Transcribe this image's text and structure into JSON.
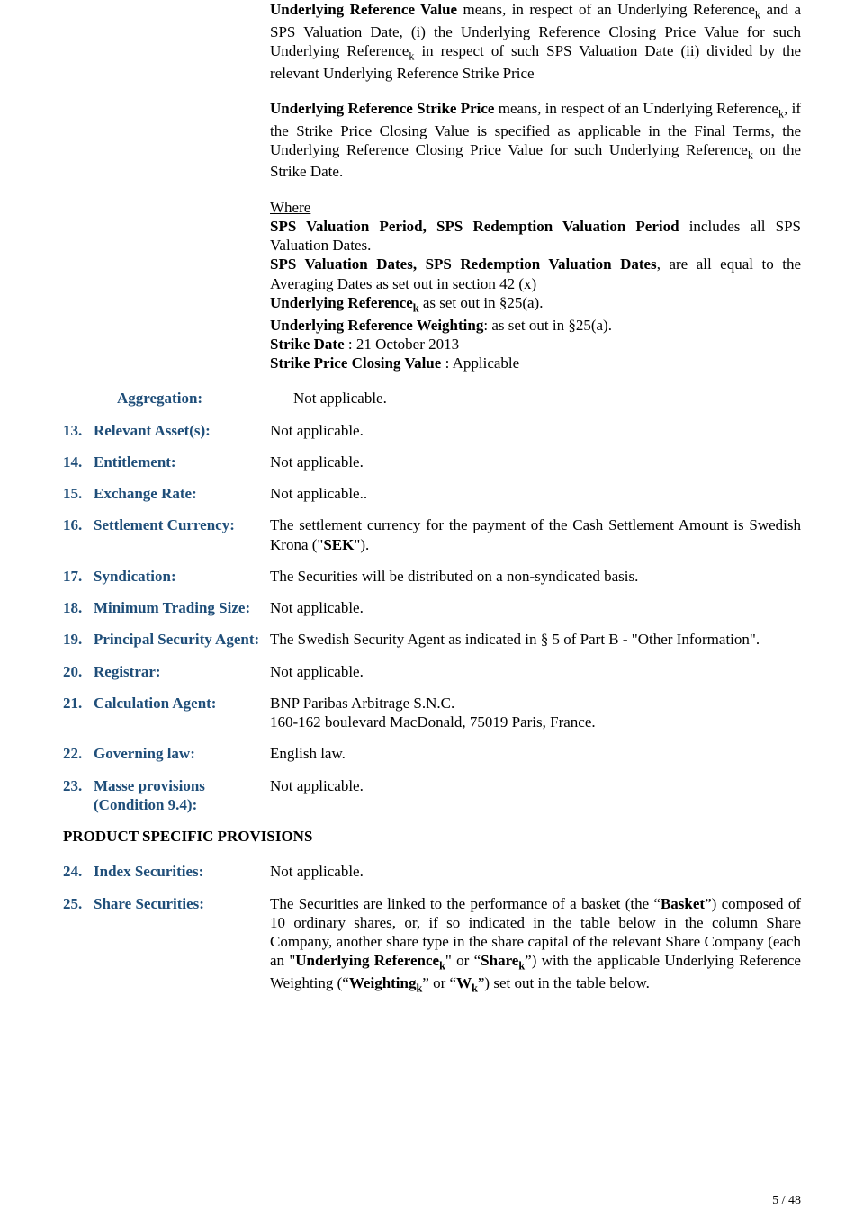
{
  "defs": {
    "p1_pre": "Underlying Reference Value",
    "p1_body": " means, in respect of an Underlying Reference",
    "p1_sub1": "k",
    "p1_mid": " and a SPS Valuation Date, (i) the Underlying Reference Closing Price Value for such Underlying Reference",
    "p1_sub2": "k",
    "p1_tail": " in respect of such SPS Valuation Date (ii) divided by the relevant Underlying Reference Strike Price",
    "p2_pre": "Underlying Reference Strike Price",
    "p2_body": " means, in respect of an Underlying Reference",
    "p2_sub1": "k",
    "p2_mid": ", if the Strike Price Closing Value is specified as applicable in the Final Terms, the Underlying Reference Closing Price Value for such Underlying Reference",
    "p2_sub2": "k",
    "p2_tail": " on the Strike Date.",
    "where_label": "Where",
    "sps1_b": "SPS Valuation Period, SPS Redemption Valuation Period",
    "sps1_t": " includes all SPS Valuation Dates.",
    "sps2_b": "SPS Valuation Dates, SPS Redemption Valuation Dates",
    "sps2_t": ",  are all equal to the Averaging Dates as set out in section 42 (x)",
    "ur_b": "Underlying Reference",
    "ur_sub": "k",
    "ur_t": " as set out in §25(a).",
    "urw_b": "Underlying Reference Weighting",
    "urw_t": ": as set out in §25(a).",
    "sd_b": "Strike Date",
    "sd_t": " : 21 October 2013",
    "spcv_b": "Strike Price Closing Value",
    "spcv_t": " : Applicable"
  },
  "items": [
    {
      "num": "",
      "label": "Aggregation:",
      "value": "Not applicable."
    },
    {
      "num": "13.",
      "label": "Relevant Asset(s):",
      "value": "Not applicable."
    },
    {
      "num": "14.",
      "label": "Entitlement:",
      "value": "Not applicable."
    },
    {
      "num": "15.",
      "label": "Exchange Rate:",
      "value": "Not applicable.."
    },
    {
      "num": "16.",
      "label": "Settlement Currency:",
      "value": "__RICH_16__"
    },
    {
      "num": "17.",
      "label": "Syndication:",
      "value": "The Securities will be distributed on a non-syndicated basis."
    },
    {
      "num": "18.",
      "label": "Minimum Trading Size:",
      "value": "Not applicable."
    },
    {
      "num": "19.",
      "label": "Principal Security Agent:",
      "value": "The Swedish Security Agent as indicated in § 5 of Part B - \"Other Information\"."
    },
    {
      "num": "20.",
      "label": "Registrar:",
      "value": "Not applicable."
    },
    {
      "num": "21.",
      "label": "Calculation Agent:",
      "value": "BNP Paribas Arbitrage S.N.C.\n160-162 boulevard MacDonald, 75019 Paris, France."
    },
    {
      "num": "22.",
      "label": "Governing law:",
      "value": "English law."
    },
    {
      "num": "23.",
      "label": "Masse provisions (Condition 9.4):",
      "value": "Not applicable."
    }
  ],
  "rich_16": {
    "pre": "The settlement currency for the payment of the Cash Settlement Amount is Swedish Krona (\"",
    "bold": "SEK",
    "post": "\")."
  },
  "section_header": "PRODUCT SPECIFIC PROVISIONS",
  "items2": [
    {
      "num": "24.",
      "label": "Index Securities:",
      "value": "Not applicable."
    },
    {
      "num": "25.",
      "label": "Share Securities:",
      "value": "__RICH_25__"
    }
  ],
  "rich_25": {
    "a": "The Securities are linked to the performance of a basket (the “",
    "b1": "Basket",
    "b": "”) composed of 10 ordinary shares, or, if so indicated in the table below in the column Share Company, another share type in the share capital of the relevant Share Company (each an \"",
    "b2": "Underlying Reference",
    "sub1": "k",
    "c": "\" or “",
    "b3": "Share",
    "sub2": "k",
    "d": "”) with the applicable Underlying Reference Weighting (“",
    "b4": "Weighting",
    "sub3": "k",
    "e": "” or “",
    "b5": "W",
    "sub4": "k",
    "f": "”) set out in the table below."
  },
  "footer": "5 / 48",
  "colors": {
    "label": "#1f4e79",
    "text": "#000000",
    "bg": "#ffffff"
  }
}
